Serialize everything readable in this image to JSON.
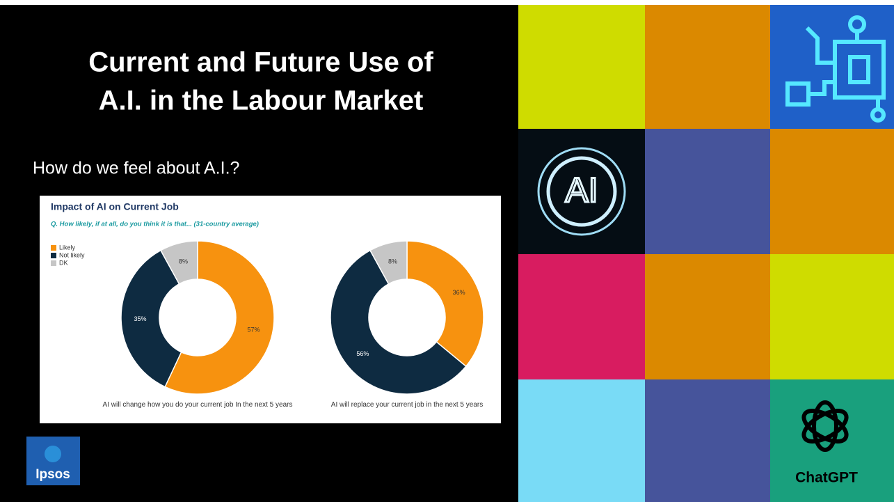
{
  "slide": {
    "title_lines": [
      "Current and Future Use of",
      "A.I. in the Labour Market"
    ],
    "subtitle": "How do we feel about A.I.?",
    "logo": "Ipsos",
    "ai_tile": "AI",
    "chatgpt_tile": "ChatGPT"
  },
  "chart_heading": {
    "title": "Impact of AI on Current Job",
    "subtitle": "Q. How likely, if at all, do you think it is that... (31-country average)"
  },
  "chart_data": [
    {
      "type": "pie",
      "donut": true,
      "caption": "AI will change how you do your current job In the next 5 years",
      "categories": [
        "Likely",
        "Not likely",
        "DK"
      ],
      "values": [
        57,
        35,
        8
      ],
      "value_labels": [
        "57%",
        "35%",
        "8%"
      ],
      "colors": [
        "#f7920f",
        "#0e2b41",
        "#c6c6c6"
      ]
    },
    {
      "type": "pie",
      "donut": true,
      "caption": "AI will replace your current job in the next 5 years",
      "categories": [
        "Likely",
        "Not likely",
        "DK"
      ],
      "values": [
        36,
        56,
        8
      ],
      "value_labels": [
        "36%",
        "56%",
        "8%"
      ],
      "colors": [
        "#f7920f",
        "#0e2b41",
        "#c6c6c6"
      ]
    }
  ]
}
